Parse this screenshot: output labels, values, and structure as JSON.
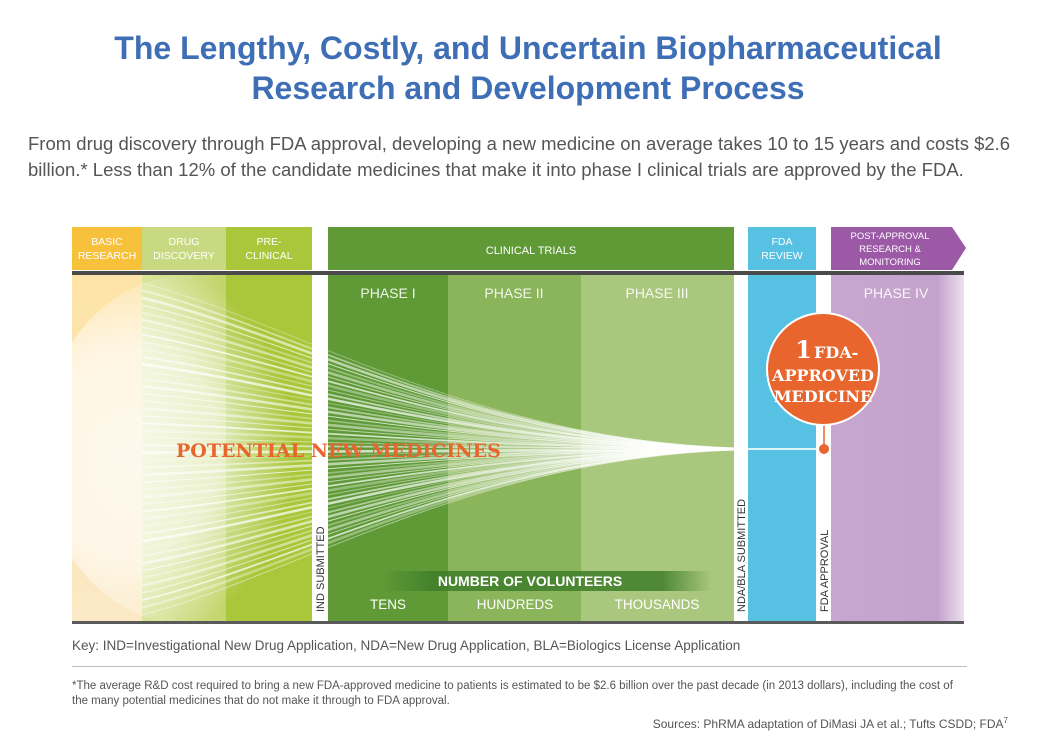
{
  "title_line1": "The Lengthy, Costly, and Uncertain Biopharmaceutical",
  "title_line2": "Research and Development Process",
  "intro": "From drug discovery through FDA approval, developing a new medicine on average takes 10 to 15 years and costs $2.6 billion.* Less than 12% of the candidate medicines that make it into phase I clinical trials are approved by the FDA.",
  "header": {
    "basic_research": [
      "BASIC",
      "RESEARCH"
    ],
    "drug_discovery": [
      "DRUG",
      "DISCOVERY"
    ],
    "pre_clinical": [
      "PRE-",
      "CLINICAL"
    ],
    "clinical_trials": "CLINICAL TRIALS",
    "fda_review": [
      "FDA",
      "REVIEW"
    ],
    "post_approval": [
      "POST-APPROVAL",
      "RESEARCH &",
      "MONITORING"
    ]
  },
  "phases": {
    "phase1": "PHASE I",
    "phase2": "PHASE II",
    "phase3": "PHASE III",
    "phase4": "PHASE IV"
  },
  "milestones": {
    "ind": "IND SUBMITTED",
    "nda_bla": "NDA/BLA SUBMITTED",
    "fda_approval": "FDA APPROVAL"
  },
  "potential": "POTENTIAL NEW MEDICINES",
  "approved": {
    "number": "1",
    "line1": "FDA-",
    "line2": "APPROVED",
    "line3": "MEDICINE"
  },
  "volunteers": {
    "label": "NUMBER OF VOLUNTEERS",
    "tens": "TENS",
    "hundreds": "HUNDREDS",
    "thousands": "THOUSANDS"
  },
  "colors": {
    "basic": "#f7c13c",
    "discovery": "#c9d981",
    "preclinical": "#aac63a",
    "phase1": "#5f9a37",
    "phase2": "#8ab55a",
    "phase3": "#a9c87e",
    "fda_review": "#56c1e3",
    "post_approval": "#b488bd",
    "accent": "#e8652e"
  },
  "key": "Key: IND=Investigational New Drug Application, NDA=New Drug Application, BLA=Biologics License Application",
  "footnote": "*The average R&D cost required to bring a new FDA-approved medicine to patients is estimated to be $2.6 billion over the past decade (in 2013 dollars), including the cost of the many potential medicines that do not make it through to FDA approval.",
  "sources": "Sources: PhRMA adaptation of DiMasi JA et al.; Tufts CSDD; FDA",
  "sources_sup": "7"
}
